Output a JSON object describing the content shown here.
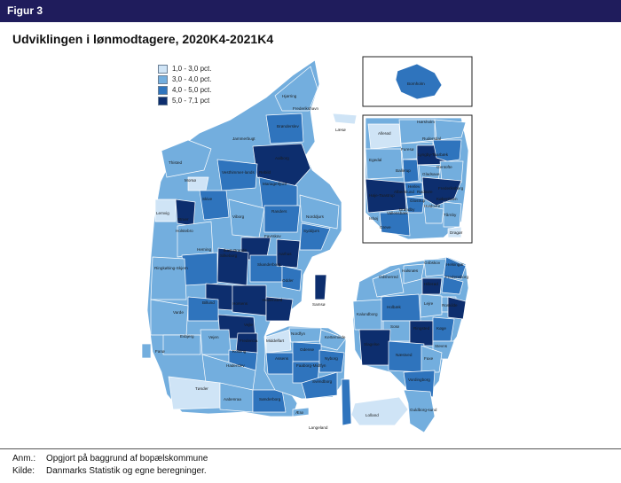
{
  "figure_label": "Figur 3",
  "title": "Udviklingen i lønmodtagere, 2020K4-2021K4",
  "legend": {
    "items": [
      {
        "label": "1,0 - 3,0 pct.",
        "color": "#cfe4f6"
      },
      {
        "label": "3,0 - 4,0 pct.",
        "color": "#73aede"
      },
      {
        "label": "4,0 - 5,0 pct.",
        "color": "#2f74bd"
      },
      {
        "label": "5,0 - 7,1 pct",
        "color": "#0d2e6e"
      }
    ]
  },
  "map_labels": {
    "hjorring": "Hjørring",
    "frederikshavn": "Frederikshavn",
    "bronderslev": "Brønderslev",
    "jammerbugt": "Jammerbugt",
    "aalborg": "Aalborg",
    "laeso": "Læsø",
    "thisted": "Thisted",
    "morso": "Morsø",
    "vesthimmerland": "Vesthimmer-lands",
    "rebild": "Rebild",
    "mariagerfjord": "Mariagerfjord",
    "skive": "Skive",
    "viborg": "Viborg",
    "randers": "Randers",
    "norddjurs": "Norddjurs",
    "syddjurs": "Syddjurs",
    "lemvig": "Lemvig",
    "struer": "Struer",
    "holstebro": "Holstebro",
    "favrskov": "Favrskov",
    "silkeborg": "Silkeborg",
    "herning": "Herning",
    "ikast": "Ikast-Brande",
    "skanderborg": "Skanderborg",
    "aarhus": "Aarhus",
    "odder": "Odder",
    "ringkobing": "Ringkøbing-Skjern",
    "samso": "Samsø",
    "horsens": "Horsens",
    "hedensted": "Hedensted",
    "billund": "Billund",
    "vejle": "Vejle",
    "varde": "Varde",
    "fredericia": "Fredericia",
    "esbjerg": "Esbjerg",
    "vejen": "Vejen",
    "kolding": "Kolding",
    "fano": "Fanø",
    "middelfart": "Middelfart",
    "nordfyn": "Nordfyn",
    "kerteminde": "Kerteminde",
    "odense": "Odense",
    "haderslev": "Haderslev",
    "assens": "Assens",
    "faaborg": "Faaborg-Midtfyn",
    "nyborg": "Nyborg",
    "svendborg": "Svendborg",
    "tonder": "Tønder",
    "aabenraa": "Aabenraa",
    "sonderborg": "Sønderborg",
    "aero": "Ærø",
    "langeland": "Langeland",
    "bornholm": "Bornholm",
    "helsingor": "Helsingør",
    "halsnaes": "Halsnæs",
    "gribskov": "Gribskov",
    "odsherred": "Odsherred",
    "hillerod": "Hillerød",
    "fredensborg": "Fredensborg",
    "holbaek": "Holbæk",
    "kalundborg": "Kalundborg",
    "lejre": "Lejre",
    "roskilde": "Roskilde",
    "soro": "Sorø",
    "ringsted": "Ringsted",
    "koge": "Køge",
    "slagelse": "Slagelse",
    "naestved": "Næstved",
    "stevns": "Stevns",
    "faxe": "Faxe",
    "vordingborg": "Vordingborg",
    "guldborgsund": "Guldborg-sund",
    "lolland": "Lolland",
    "allerod": "Allerød",
    "rudersdal": "Rudersdal",
    "egedal": "Egedal",
    "furesoe": "Furesø",
    "lyngby": "Lyngby-Taarbæk",
    "gentofte": "Gentofte",
    "ballerup": "Ballerup",
    "gladsaxe": "Gladsaxe",
    "herlev": "Herlev",
    "rodovre": "Rødovre",
    "hoje_taastrup": "Høje-Taastrup",
    "albertslund": "Albertslund",
    "kobenhavn": "København",
    "hvidovre": "Hvidovre",
    "glostrup": "Glostrup",
    "ishoj": "Ishøj",
    "vallensbaek": "Vallensbæk",
    "brondby": "Brøndby",
    "taarnby": "Tårnby",
    "greve": "Greve",
    "dragor": "Dragør",
    "frederiksberg": "Frederiksberg",
    "horsholm": "Hørsholm"
  },
  "notes": {
    "anm_key": "Anm.:",
    "anm_text": "Opgjort på baggrund af bopælskommune",
    "kilde_key": "Kilde:",
    "kilde_text": "Danmarks Statistik og egne beregninger."
  }
}
